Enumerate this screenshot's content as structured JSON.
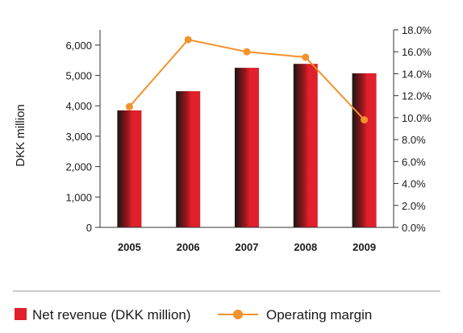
{
  "chart_data": {
    "type": "bar",
    "title": "",
    "categories": [
      "2005",
      "2006",
      "2007",
      "2008",
      "2009"
    ],
    "series": [
      {
        "name": "Net revenue (DKK million)",
        "type": "bar",
        "axis": "left",
        "values": [
          3850,
          4480,
          5250,
          5380,
          5070
        ]
      },
      {
        "name": "Operating margin",
        "type": "line",
        "axis": "right",
        "values": [
          11.0,
          17.1,
          16.0,
          15.5,
          9.8
        ]
      }
    ],
    "ylabel": "DKK million",
    "ylim": [
      0,
      6500
    ],
    "yticks": [
      "0",
      "1,000",
      "2,000",
      "3,000",
      "4,000",
      "5,000",
      "6,000"
    ],
    "y2lim": [
      0,
      18
    ],
    "y2ticks": [
      "0.0%",
      "2.0%",
      "4.0%",
      "6.0%",
      "8.0%",
      "10.0%",
      "12.0%",
      "14.0%",
      "16.0%",
      "18.0%"
    ],
    "legend_position": "bottom",
    "grid": false,
    "colors": {
      "bar": "#e0202a",
      "bar_dark": "#1a1414",
      "line": "#f4922b",
      "axis": "#333333"
    }
  }
}
